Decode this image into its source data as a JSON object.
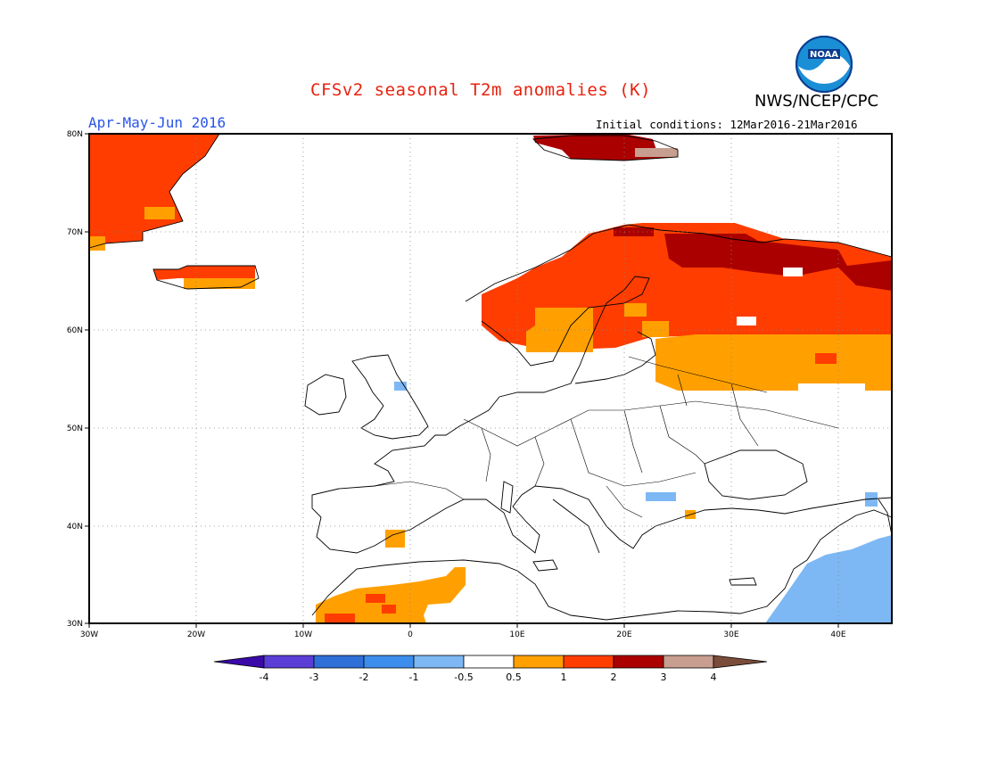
{
  "header": {
    "title": "CFSv2 seasonal T2m anomalies (K)",
    "organization": "NWS/NCEP/CPC",
    "period": "Apr-May-Jun 2016",
    "initial_conditions": "Initial conditions: 12Mar2016-21Mar2016",
    "logo_text": "NOAA"
  },
  "map": {
    "region": "Europe",
    "lon_range": [
      -30,
      45
    ],
    "lat_range": [
      30,
      80
    ],
    "lat_ticks": [
      "30N",
      "40N",
      "50N",
      "60N",
      "70N",
      "80N"
    ],
    "lon_ticks": [
      "30W",
      "20W",
      "10W",
      "0",
      "10E",
      "20E",
      "30E",
      "40E"
    ],
    "grid": "dotted"
  },
  "colorbar": {
    "labels": [
      "-4",
      "-3",
      "-2",
      "-1",
      "-0.5",
      "0.5",
      "1",
      "2",
      "3",
      "4"
    ],
    "colors": [
      "#3a09a8",
      "#5a3ed6",
      "#2f6fd8",
      "#3d8ded",
      "#7db8f4",
      "#ffffff",
      "#ffa000",
      "#ff3d00",
      "#aa0000",
      "#c79e8f",
      "#7a4c3a"
    ],
    "unit": "K"
  },
  "anomalies": [
    {
      "region": "Greenland east coast",
      "level": "1 to 2"
    },
    {
      "region": "Iceland",
      "level": "1 to 2"
    },
    {
      "region": "Svalbard",
      "level": "2 to 3"
    },
    {
      "region": "Scandinavia",
      "level": "1 to 2"
    },
    {
      "region": "Northern Russia / Kola",
      "level": "2 to 3"
    },
    {
      "region": "Western Russia",
      "level": "0.5 to 1"
    },
    {
      "region": "North Africa",
      "level": "0.5 to 2"
    },
    {
      "region": "Middle East",
      "level": "-1 to -0.5"
    },
    {
      "region": "Scotland patch",
      "level": "-1 to -0.5"
    }
  ]
}
